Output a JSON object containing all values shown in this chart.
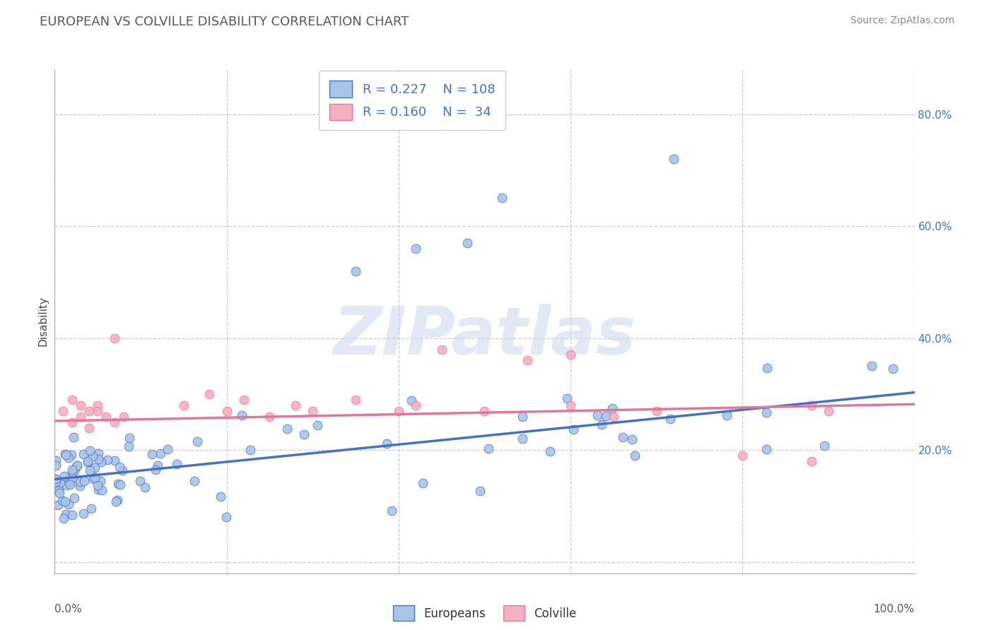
{
  "title": "EUROPEAN VS COLVILLE DISABILITY CORRELATION CHART",
  "source": "Source: ZipAtlas.com",
  "ylabel": "Disability",
  "xlim": [
    0,
    1
  ],
  "ylim": [
    -0.02,
    0.88
  ],
  "color_european": "#aac4e8",
  "color_colville": "#f4afc0",
  "line_color_european": "#4472c4",
  "line_color_colville": "#e07898",
  "background_color": "#ffffff",
  "grid_color": "#cccccc",
  "watermark": "ZIPatlas",
  "R_european": 0.227,
  "N_european": 108,
  "R_colville": 0.16,
  "N_colville": 34,
  "eu_intercept": 0.148,
  "eu_slope": 0.155,
  "col_intercept": 0.252,
  "col_slope": 0.03
}
